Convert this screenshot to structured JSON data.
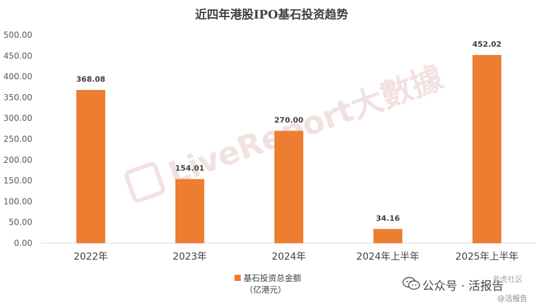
{
  "chart_data": {
    "type": "bar",
    "title": "近四年港股IPO基石投资趋势",
    "categories": [
      "2022年",
      "2023年",
      "2024年",
      "2024年上半年",
      "2025年上半年"
    ],
    "series": [
      {
        "name": "基石投资总金额\n（亿港元）",
        "color": "#ED7D31",
        "values": [
          368.08,
          154.01,
          270.0,
          34.16,
          452.02
        ]
      }
    ],
    "data_labels": [
      "368.08",
      "154.01",
      "270.00",
      "34.16",
      "452.02"
    ],
    "ylim": [
      0,
      500
    ],
    "yticks": [
      "0.00",
      "50.00",
      "100.00",
      "150.00",
      "200.00",
      "250.00",
      "300.00",
      "350.00",
      "400.00",
      "450.00",
      "500.00"
    ],
    "grid": false,
    "legend_position": "bottom-center",
    "xlabel": "",
    "ylabel": ""
  },
  "watermark": "LiveReport大數據",
  "credit": {
    "wechat_label": "公众号 · 活报告",
    "corner_mark": "@活报告",
    "forum_mark": "老虎社区"
  },
  "colors": {
    "bar": "#ED7D31",
    "axis": "#D9D9D9"
  }
}
